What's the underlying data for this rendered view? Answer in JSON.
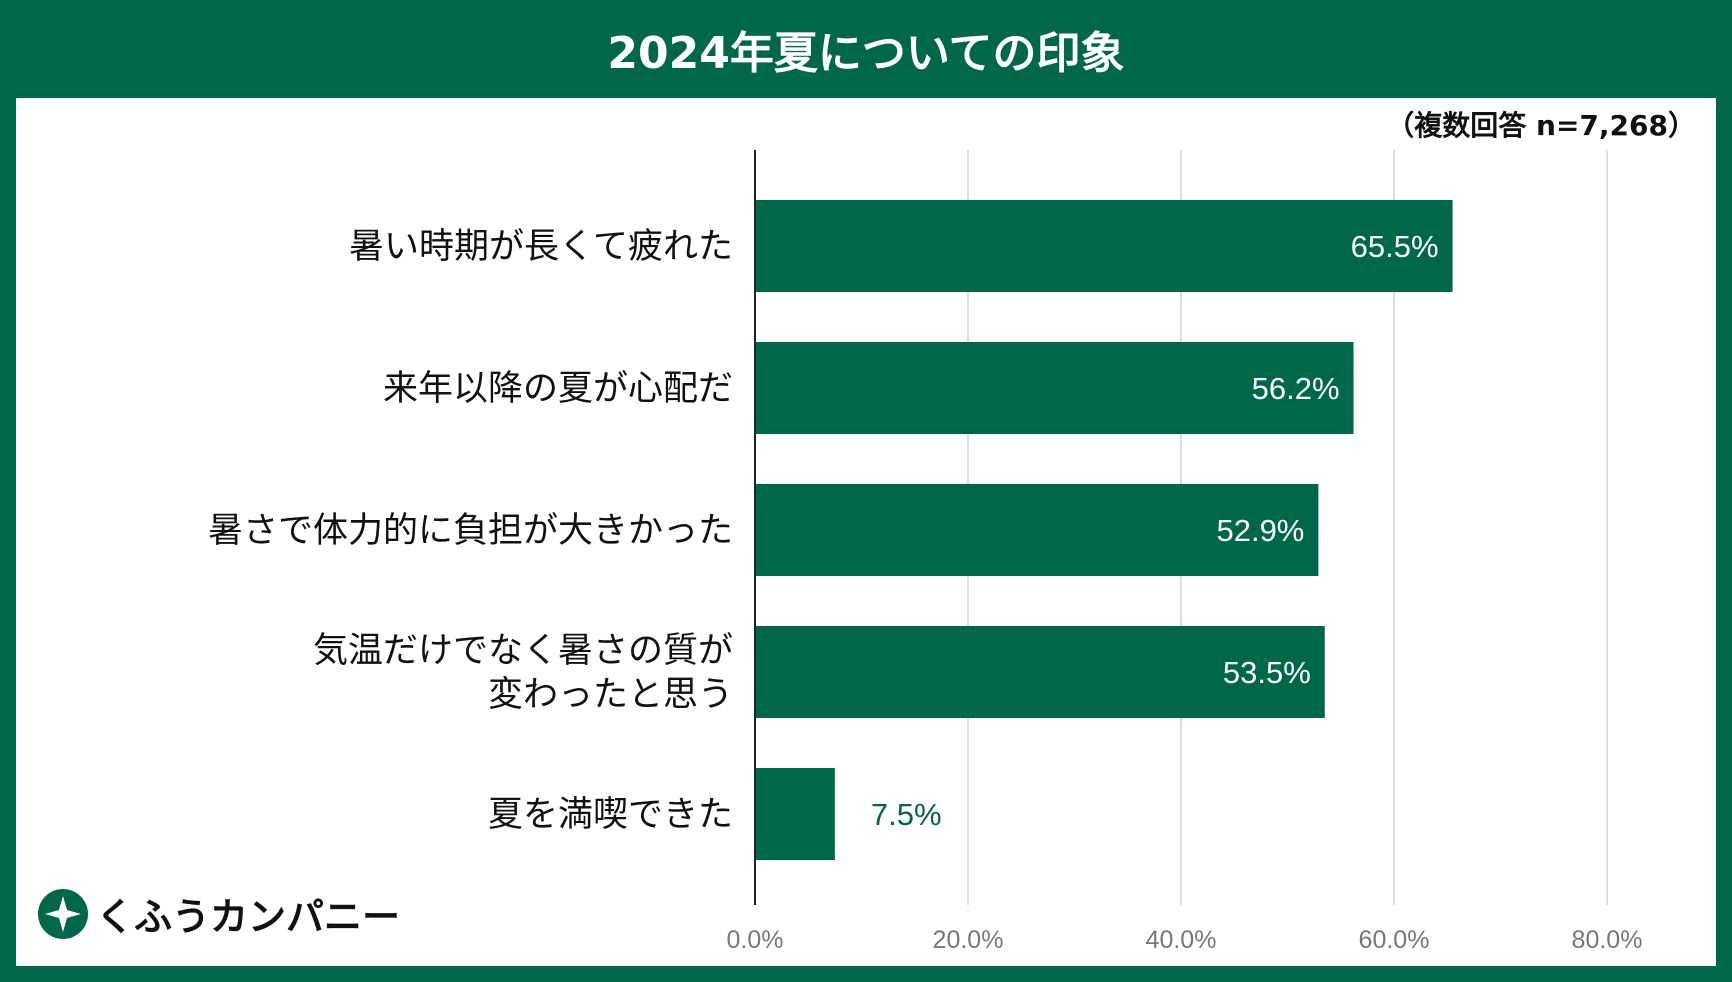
{
  "chart_data": {
    "type": "bar",
    "orientation": "horizontal",
    "title": "2024年夏についての印象",
    "note": "（複数回答 n=7,268）",
    "categories": [
      [
        "暑い時期が長くて疲れた"
      ],
      [
        "来年以降の夏が心配だ"
      ],
      [
        "暑さで体力的に負担が大きかった"
      ],
      [
        "気温だけでなく暑さの質が",
        "変わったと思う"
      ],
      [
        "夏を満喫できた"
      ]
    ],
    "values": [
      65.5,
      56.2,
      52.9,
      53.5,
      7.5
    ],
    "value_labels": [
      "65.5%",
      "56.2%",
      "52.9%",
      "53.5%",
      "7.5%"
    ],
    "xlim": [
      0,
      80
    ],
    "x_ticks": [
      "0.0%",
      "20.0%",
      "40.0%",
      "60.0%",
      "80.0%"
    ],
    "grid": true,
    "colors": {
      "bar": "#00674a",
      "grid": "#d0d0d0",
      "axis_tick": "#777777",
      "inside_label": "#ffffff",
      "outside_label": "#00674a"
    }
  },
  "logo": {
    "text": "くふうカンパニー",
    "icon": "kufu-logo-mark-icon"
  }
}
